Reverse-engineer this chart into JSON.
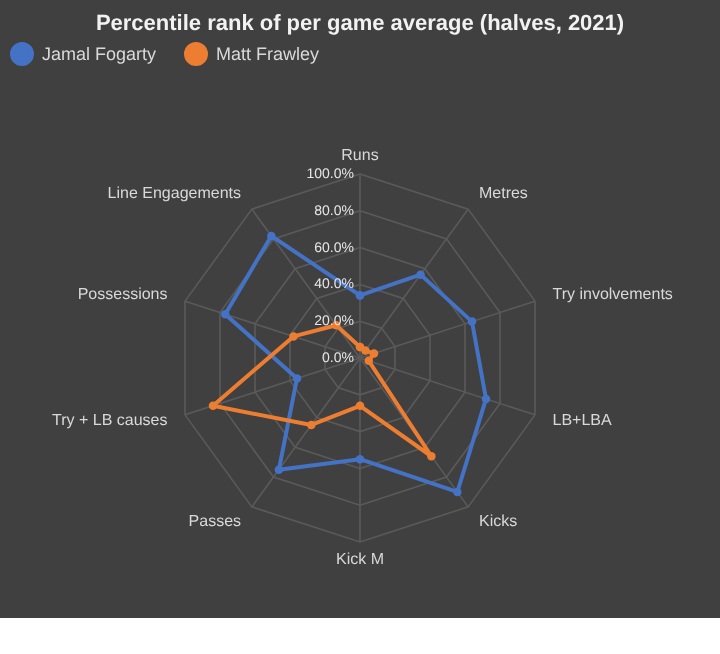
{
  "chart_data": {
    "type": "radar",
    "title": "Percentile rank of per game average (halves, 2021)",
    "categories": [
      "Runs",
      "Metres",
      "Try involvements",
      "LB+LBA",
      "Kicks",
      "Kick M",
      "Passes",
      "Try + LB causes",
      "Possessions",
      "Line Engagements"
    ],
    "series": [
      {
        "name": "Jamal Fogarty",
        "color": "#4472c4",
        "values": [
          34,
          56,
          64,
          72,
          90,
          55,
          75,
          36,
          77,
          82
        ]
      },
      {
        "name": "Matt Frawley",
        "color": "#ed7d31",
        "values": [
          6,
          5,
          8,
          5,
          66,
          26,
          45,
          84,
          38,
          22
        ]
      }
    ],
    "ylim": [
      0,
      100
    ],
    "yticks": [
      {
        "value": 0,
        "label": "0.0%"
      },
      {
        "value": 20,
        "label": "20.0%"
      },
      {
        "value": 40,
        "label": "40.0%"
      },
      {
        "value": 60,
        "label": "60.0%"
      },
      {
        "value": 80,
        "label": "80.0%"
      },
      {
        "value": 100,
        "label": "100.0%"
      }
    ],
    "legend": "top",
    "marker": "circle",
    "grid": true
  }
}
